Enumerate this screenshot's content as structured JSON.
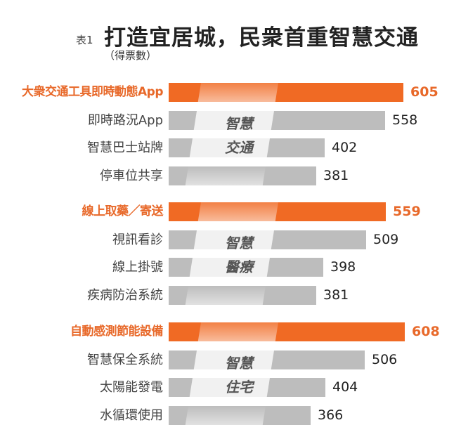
{
  "header": {
    "table_no": "表1",
    "title": "打造宜居城，民衆首重智慧交通",
    "subtitle": "（得票數）"
  },
  "colors": {
    "highlight": "#f06a24",
    "highlight_text": "#e8692a",
    "bar": "#bdbdbd"
  },
  "groups": [
    {
      "category": [
        "智慧",
        "交通"
      ],
      "items": [
        {
          "label": "大衆交通工具即時動態App",
          "value": "605",
          "highlight": true
        },
        {
          "label": "即時路況App",
          "value": "558"
        },
        {
          "label": "智慧巴士站牌",
          "value": "402"
        },
        {
          "label": "停車位共享",
          "value": "381"
        }
      ]
    },
    {
      "category": [
        "智慧",
        "醫療"
      ],
      "items": [
        {
          "label": "線上取藥／寄送",
          "value": "559",
          "highlight": true
        },
        {
          "label": "視訊看診",
          "value": "509"
        },
        {
          "label": "線上掛號",
          "value": "398"
        },
        {
          "label": "疾病防治系統",
          "value": "381"
        }
      ]
    },
    {
      "category": [
        "智慧",
        "住宅"
      ],
      "items": [
        {
          "label": "自動感測節能設備",
          "value": "608",
          "highlight": true
        },
        {
          "label": "智慧保全系統",
          "value": "506"
        },
        {
          "label": "太陽能發電",
          "value": "404"
        },
        {
          "label": "水循環使用",
          "value": "366"
        }
      ]
    }
  ],
  "chart_data": {
    "type": "bar",
    "orientation": "horizontal",
    "title": "打造宜居城，民衆首重智慧交通",
    "subtitle": "（得票數）",
    "xlabel": "",
    "ylabel": "得票數",
    "groups": [
      "智慧交通",
      "智慧醫療",
      "智慧住宅"
    ],
    "categories": [
      "大衆交通工具即時動態App",
      "即時路況App",
      "智慧巴士站牌",
      "停車位共享",
      "線上取藥／寄送",
      "視訊看診",
      "線上掛號",
      "疾病防治系統",
      "自動感測節能設備",
      "智慧保全系統",
      "太陽能發電",
      "水循環使用"
    ],
    "values": [
      605,
      558,
      402,
      381,
      559,
      509,
      398,
      381,
      608,
      506,
      404,
      366
    ],
    "grid": false,
    "legend": "none",
    "xlim": [
      0,
      640
    ]
  }
}
